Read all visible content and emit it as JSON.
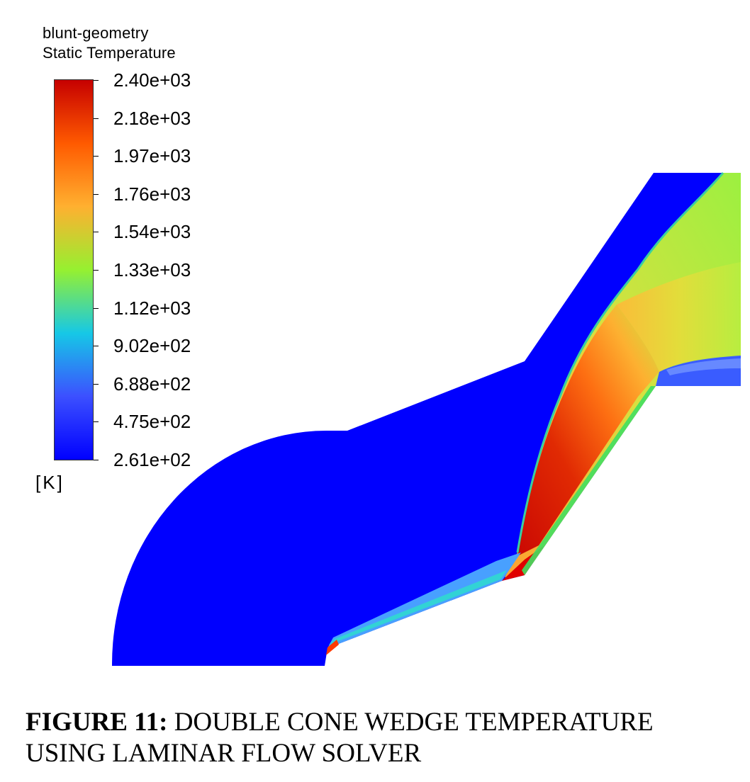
{
  "legend": {
    "title_line1": "blunt-geometry",
    "title_line2": "Static Temperature",
    "unit": "[K]",
    "ticks": [
      "2.40e+03",
      "2.18e+03",
      "1.97e+03",
      "1.76e+03",
      "1.54e+03",
      "1.33e+03",
      "1.12e+03",
      "9.02e+02",
      "6.88e+02",
      "4.75e+02",
      "2.61e+02"
    ],
    "colormap": [
      "#c60000",
      "#ff5a00",
      "#ffb030",
      "#96f030",
      "#16c8e6",
      "#3c50ff",
      "#0000ff"
    ]
  },
  "caption": {
    "label": "FIGURE 11:",
    "text": " DOUBLE CONE WEDGE TEMPERATURE USING LAMINAR FLOW SOLVER"
  }
}
